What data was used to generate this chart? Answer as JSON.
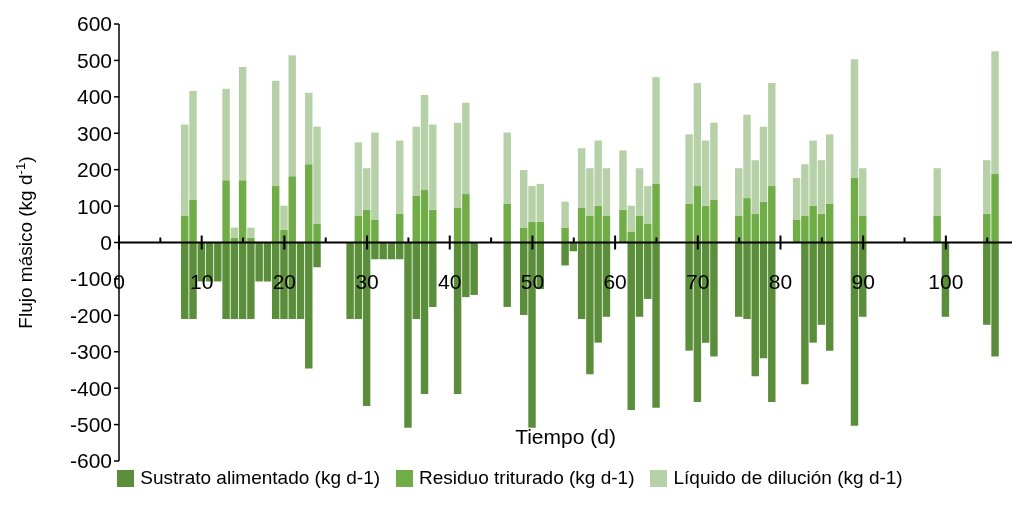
{
  "chart_data": {
    "type": "bar",
    "xlabel": "Tiempo (d)",
    "ylabel": "Flujo másico (kg d$^{-1}$)",
    "stacked": true,
    "legend": "bottom",
    "xlim": [
      0,
      108
    ],
    "xticks": [
      0,
      {
        "value": 5,
        "label": null
      },
      10,
      {
        "value": 15,
        "label": null
      },
      20,
      {
        "value": 25,
        "label": null
      },
      30,
      {
        "value": 35,
        "label": null
      },
      40,
      {
        "value": 45,
        "label": null
      },
      50,
      {
        "value": 55,
        "label": null
      },
      60,
      {
        "value": 65,
        "label": null
      },
      70,
      {
        "value": 75,
        "label": null
      },
      80,
      {
        "value": 85,
        "label": null
      },
      90,
      {
        "value": 95,
        "label": null
      },
      100,
      {
        "value": 105,
        "label": null
      }
    ],
    "ylim": [
      -600,
      600
    ],
    "yticks": [
      -600,
      -500,
      -400,
      -300,
      -200,
      -100,
      0,
      100,
      200,
      300,
      400,
      500,
      600
    ],
    "x": [
      8,
      9,
      10,
      11,
      12,
      13,
      14,
      15,
      16,
      17,
      18,
      19,
      20,
      21,
      22,
      23,
      24,
      28,
      29,
      30,
      31,
      32,
      33,
      34,
      35,
      36,
      37,
      38,
      41,
      42,
      43,
      47,
      49,
      50,
      51,
      54,
      55,
      56,
      57,
      58,
      59,
      61,
      62,
      63,
      64,
      65,
      69,
      70,
      71,
      72,
      75,
      76,
      77,
      78,
      79,
      82,
      83,
      84,
      85,
      86,
      89,
      90,
      99,
      100,
      105,
      106
    ],
    "series": [
      {
        "name": "Sustrato alimentado (kg d-1)",
        "color": "#5b8e3a",
        "values": [
          -210,
          -210,
          -107,
          -107,
          -107,
          -210,
          -210,
          -210,
          -210,
          -107,
          -107,
          -210,
          -210,
          -210,
          -210,
          -346,
          -68,
          -210,
          -210,
          -449,
          -46,
          -46,
          -46,
          -46,
          -509,
          -210,
          -416,
          -177,
          -416,
          -150,
          -144,
          -177,
          -199,
          -509,
          -128,
          -63,
          -24,
          -210,
          -362,
          -275,
          -204,
          null,
          -460,
          -204,
          -155,
          -454,
          -297,
          -438,
          -275,
          -313,
          -204,
          -210,
          -367,
          -318,
          -438,
          null,
          -389,
          -275,
          -226,
          -297,
          -503,
          -204,
          null,
          -204,
          -226,
          -313
        ]
      },
      {
        "name": "Residuo triturado (kg d-1)",
        "color": "#70ad47",
        "values": [
          73,
          117,
          null,
          null,
          null,
          171,
          13,
          171,
          13,
          null,
          null,
          155,
          35,
          182,
          null,
          215,
          52,
          null,
          73,
          90,
          63,
          null,
          null,
          79,
          null,
          128,
          144,
          90,
          95,
          133,
          null,
          106,
          41,
          57,
          57,
          41,
          null,
          95,
          73,
          101,
          73,
          90,
          30,
          73,
          52,
          161,
          106,
          155,
          101,
          117,
          73,
          122,
          79,
          112,
          155,
          63,
          73,
          101,
          79,
          106,
          177,
          73,
          73,
          null,
          79,
          188
        ]
      },
      {
        "name": "Líquido de dilución (kg d-1)",
        "color": "#b6d1a8",
        "values": [
          251,
          299,
          null,
          null,
          null,
          251,
          28,
          311,
          28,
          null,
          null,
          289,
          66,
          332,
          null,
          196,
          266,
          null,
          202,
          114,
          239,
          null,
          null,
          201,
          null,
          190,
          261,
          234,
          234,
          251,
          null,
          196,
          158,
          98,
          104,
          71,
          null,
          164,
          131,
          179,
          131,
          163,
          71,
          131,
          103,
          293,
          191,
          283,
          179,
          212,
          131,
          229,
          147,
          206,
          283,
          114,
          142,
          179,
          147,
          191,
          326,
          131,
          131,
          null,
          147,
          337
        ]
      }
    ]
  }
}
